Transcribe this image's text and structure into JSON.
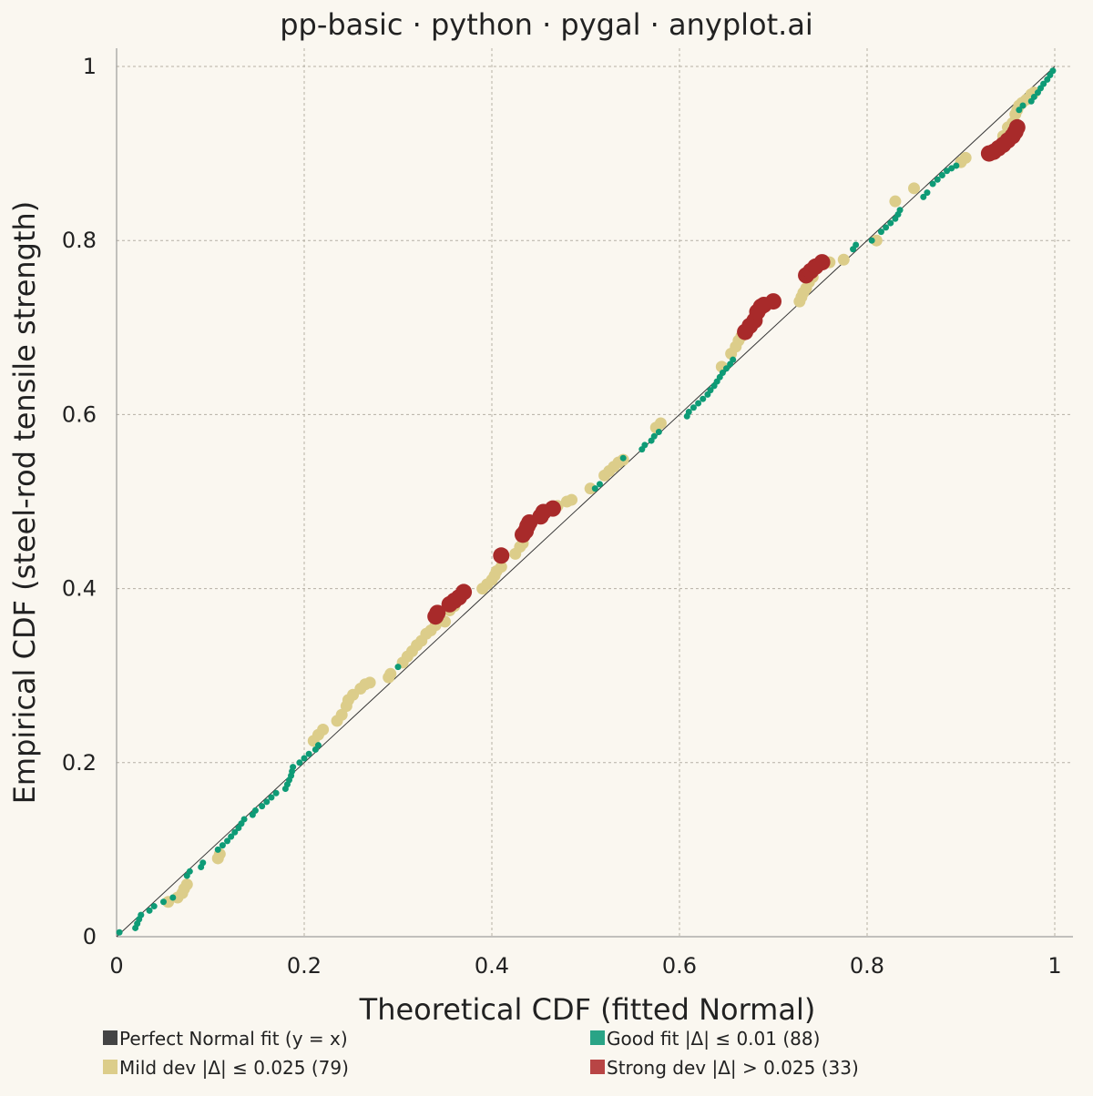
{
  "chart_data": {
    "type": "scatter",
    "title": "pp-basic · python · pygal · anyplot.ai",
    "xlabel": "Theoretical CDF (fitted Normal)",
    "ylabel": "Empirical CDF (steel-rod tensile strength)",
    "xlim": [
      0,
      1
    ],
    "ylim": [
      0,
      1
    ],
    "xticks": [
      "0",
      "0.2",
      "0.4",
      "0.6",
      "0.8",
      "1"
    ],
    "yticks": [
      "0",
      "0.2",
      "0.4",
      "0.6",
      "0.8",
      "1"
    ],
    "grid": true,
    "legend_position": "bottom",
    "colors": {
      "background": "#faf7f0",
      "reference": "#444444",
      "good": "#0e9b76",
      "mild": "#dccd8a",
      "strong": "#a82a2a"
    },
    "legend": [
      {
        "label": "Perfect Normal fit (y = x)",
        "color": "#444444"
      },
      {
        "label": "Good fit |Δ| ≤ 0.01 (88)",
        "color": "#2aa486"
      },
      {
        "label": "Mild dev |Δ| ≤ 0.025 (79)",
        "color": "#dccd8a"
      },
      {
        "label": "Strong dev |Δ| > 0.025 (33)",
        "color": "#b84545"
      }
    ],
    "series": [
      {
        "name": "Perfect Normal fit (y = x)",
        "kind": "line",
        "points": [
          [
            0,
            0
          ],
          [
            1,
            1
          ]
        ]
      },
      {
        "name": "Good fit |Δ| ≤ 0.01 (88)",
        "points": [
          [
            0.003,
            0.005
          ],
          [
            0.02,
            0.01
          ],
          [
            0.022,
            0.015
          ],
          [
            0.024,
            0.02
          ],
          [
            0.026,
            0.025
          ],
          [
            0.035,
            0.03
          ],
          [
            0.04,
            0.035
          ],
          [
            0.05,
            0.04
          ],
          [
            0.06,
            0.045
          ],
          [
            0.075,
            0.07
          ],
          [
            0.078,
            0.075
          ],
          [
            0.09,
            0.08
          ],
          [
            0.092,
            0.085
          ],
          [
            0.108,
            0.1
          ],
          [
            0.113,
            0.105
          ],
          [
            0.118,
            0.11
          ],
          [
            0.122,
            0.115
          ],
          [
            0.126,
            0.12
          ],
          [
            0.13,
            0.125
          ],
          [
            0.133,
            0.13
          ],
          [
            0.136,
            0.135
          ],
          [
            0.145,
            0.14
          ],
          [
            0.148,
            0.145
          ],
          [
            0.155,
            0.15
          ],
          [
            0.16,
            0.155
          ],
          [
            0.165,
            0.16
          ],
          [
            0.17,
            0.165
          ],
          [
            0.18,
            0.17
          ],
          [
            0.182,
            0.175
          ],
          [
            0.184,
            0.18
          ],
          [
            0.186,
            0.185
          ],
          [
            0.187,
            0.19
          ],
          [
            0.188,
            0.195
          ],
          [
            0.195,
            0.2
          ],
          [
            0.2,
            0.205
          ],
          [
            0.205,
            0.21
          ],
          [
            0.212,
            0.215
          ],
          [
            0.215,
            0.22
          ],
          [
            0.3,
            0.31
          ],
          [
            0.51,
            0.515
          ],
          [
            0.515,
            0.52
          ],
          [
            0.54,
            0.55
          ],
          [
            0.56,
            0.56
          ],
          [
            0.563,
            0.565
          ],
          [
            0.57,
            0.57
          ],
          [
            0.573,
            0.575
          ],
          [
            0.578,
            0.58
          ],
          [
            0.608,
            0.598
          ],
          [
            0.61,
            0.603
          ],
          [
            0.615,
            0.608
          ],
          [
            0.62,
            0.613
          ],
          [
            0.625,
            0.618
          ],
          [
            0.63,
            0.623
          ],
          [
            0.633,
            0.628
          ],
          [
            0.637,
            0.633
          ],
          [
            0.64,
            0.638
          ],
          [
            0.643,
            0.643
          ],
          [
            0.646,
            0.648
          ],
          [
            0.65,
            0.653
          ],
          [
            0.654,
            0.658
          ],
          [
            0.657,
            0.663
          ],
          [
            0.785,
            0.79
          ],
          [
            0.788,
            0.795
          ],
          [
            0.805,
            0.8
          ],
          [
            0.815,
            0.81
          ],
          [
            0.82,
            0.815
          ],
          [
            0.825,
            0.82
          ],
          [
            0.83,
            0.825
          ],
          [
            0.833,
            0.83
          ],
          [
            0.835,
            0.835
          ],
          [
            0.86,
            0.85
          ],
          [
            0.864,
            0.855
          ],
          [
            0.87,
            0.865
          ],
          [
            0.875,
            0.87
          ],
          [
            0.88,
            0.875
          ],
          [
            0.885,
            0.88
          ],
          [
            0.89,
            0.883
          ],
          [
            0.895,
            0.886
          ],
          [
            0.962,
            0.95
          ],
          [
            0.966,
            0.955
          ],
          [
            0.975,
            0.96
          ],
          [
            0.978,
            0.965
          ],
          [
            0.982,
            0.97
          ],
          [
            0.985,
            0.975
          ],
          [
            0.988,
            0.98
          ],
          [
            0.992,
            0.985
          ],
          [
            0.995,
            0.99
          ],
          [
            0.998,
            0.995
          ]
        ]
      },
      {
        "name": "Mild dev |Δ| ≤ 0.025 (79)",
        "points": [
          [
            0.055,
            0.04
          ],
          [
            0.065,
            0.045
          ],
          [
            0.07,
            0.05
          ],
          [
            0.072,
            0.055
          ],
          [
            0.075,
            0.06
          ],
          [
            0.108,
            0.09
          ],
          [
            0.11,
            0.095
          ],
          [
            0.21,
            0.225
          ],
          [
            0.215,
            0.232
          ],
          [
            0.22,
            0.238
          ],
          [
            0.235,
            0.248
          ],
          [
            0.24,
            0.255
          ],
          [
            0.245,
            0.265
          ],
          [
            0.247,
            0.272
          ],
          [
            0.252,
            0.278
          ],
          [
            0.26,
            0.285
          ],
          [
            0.265,
            0.29
          ],
          [
            0.27,
            0.292
          ],
          [
            0.29,
            0.298
          ],
          [
            0.292,
            0.302
          ],
          [
            0.305,
            0.315
          ],
          [
            0.31,
            0.322
          ],
          [
            0.315,
            0.328
          ],
          [
            0.32,
            0.335
          ],
          [
            0.325,
            0.34
          ],
          [
            0.33,
            0.348
          ],
          [
            0.335,
            0.352
          ],
          [
            0.34,
            0.358
          ],
          [
            0.35,
            0.362
          ],
          [
            0.355,
            0.375
          ],
          [
            0.36,
            0.38
          ],
          [
            0.39,
            0.4
          ],
          [
            0.395,
            0.405
          ],
          [
            0.4,
            0.41
          ],
          [
            0.403,
            0.415
          ],
          [
            0.405,
            0.42
          ],
          [
            0.41,
            0.425
          ],
          [
            0.425,
            0.44
          ],
          [
            0.43,
            0.448
          ],
          [
            0.433,
            0.452
          ],
          [
            0.47,
            0.495
          ],
          [
            0.48,
            0.5
          ],
          [
            0.485,
            0.502
          ],
          [
            0.505,
            0.515
          ],
          [
            0.52,
            0.53
          ],
          [
            0.525,
            0.535
          ],
          [
            0.53,
            0.54
          ],
          [
            0.535,
            0.545
          ],
          [
            0.54,
            0.548
          ],
          [
            0.575,
            0.585
          ],
          [
            0.58,
            0.59
          ],
          [
            0.645,
            0.655
          ],
          [
            0.655,
            0.67
          ],
          [
            0.66,
            0.678
          ],
          [
            0.663,
            0.685
          ],
          [
            0.666,
            0.69
          ],
          [
            0.728,
            0.73
          ],
          [
            0.73,
            0.735
          ],
          [
            0.732,
            0.74
          ],
          [
            0.735,
            0.745
          ],
          [
            0.738,
            0.752
          ],
          [
            0.742,
            0.758
          ],
          [
            0.76,
            0.775
          ],
          [
            0.775,
            0.778
          ],
          [
            0.81,
            0.8
          ],
          [
            0.83,
            0.845
          ],
          [
            0.85,
            0.86
          ],
          [
            0.9,
            0.89
          ],
          [
            0.905,
            0.895
          ],
          [
            0.945,
            0.92
          ],
          [
            0.95,
            0.93
          ],
          [
            0.955,
            0.935
          ],
          [
            0.958,
            0.945
          ],
          [
            0.96,
            0.95
          ],
          [
            0.962,
            0.955
          ],
          [
            0.965,
            0.958
          ],
          [
            0.97,
            0.962
          ],
          [
            0.975,
            0.968
          ],
          [
            0.978,
            0.97
          ]
        ]
      },
      {
        "name": "Strong dev |Δ| > 0.025 (33)",
        "points": [
          [
            0.34,
            0.368
          ],
          [
            0.342,
            0.372
          ],
          [
            0.355,
            0.382
          ],
          [
            0.36,
            0.386
          ],
          [
            0.365,
            0.39
          ],
          [
            0.37,
            0.396
          ],
          [
            0.41,
            0.438
          ],
          [
            0.433,
            0.462
          ],
          [
            0.436,
            0.466
          ],
          [
            0.438,
            0.472
          ],
          [
            0.44,
            0.476
          ],
          [
            0.452,
            0.483
          ],
          [
            0.455,
            0.488
          ],
          [
            0.465,
            0.492
          ],
          [
            0.67,
            0.695
          ],
          [
            0.675,
            0.702
          ],
          [
            0.68,
            0.708
          ],
          [
            0.683,
            0.718
          ],
          [
            0.687,
            0.724
          ],
          [
            0.69,
            0.726
          ],
          [
            0.7,
            0.73
          ],
          [
            0.735,
            0.76
          ],
          [
            0.74,
            0.765
          ],
          [
            0.745,
            0.77
          ],
          [
            0.752,
            0.775
          ],
          [
            0.93,
            0.9
          ],
          [
            0.935,
            0.902
          ],
          [
            0.94,
            0.906
          ],
          [
            0.945,
            0.91
          ],
          [
            0.95,
            0.915
          ],
          [
            0.955,
            0.92
          ],
          [
            0.958,
            0.925
          ],
          [
            0.96,
            0.93
          ]
        ]
      }
    ]
  }
}
